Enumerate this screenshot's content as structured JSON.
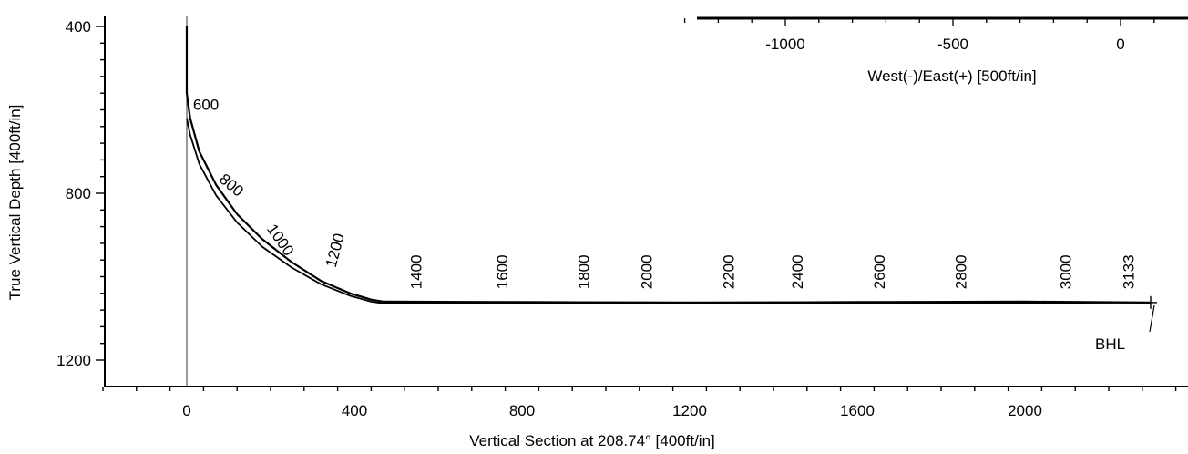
{
  "chart_data": {
    "type": "line",
    "title": "",
    "xlabel": "Vertical Section at 208.74° [400ft/in]",
    "ylabel": "True Vertical Depth [400ft/in]",
    "xlim": [
      -200,
      2380
    ],
    "ylim": [
      400,
      1240
    ],
    "y_inverted": true,
    "grid": false,
    "x_ticks": [
      0,
      400,
      800,
      1200,
      1600,
      2000
    ],
    "y_ticks": [
      400,
      800,
      1200
    ],
    "series": [
      {
        "points": [
          [
            0,
            400
          ],
          [
            0,
            560
          ],
          [
            8,
            620
          ],
          [
            30,
            700
          ],
          [
            70,
            780
          ],
          [
            120,
            850
          ],
          [
            180,
            910
          ],
          [
            250,
            965
          ],
          [
            320,
            1010
          ],
          [
            390,
            1040
          ],
          [
            440,
            1055
          ],
          [
            470,
            1060
          ],
          [
            800,
            1061
          ],
          [
            1200,
            1062
          ],
          [
            1600,
            1061
          ],
          [
            2000,
            1060
          ],
          [
            2300,
            1062
          ]
        ]
      },
      {
        "points": [
          [
            0,
            620
          ],
          [
            8,
            660
          ],
          [
            30,
            730
          ],
          [
            70,
            805
          ],
          [
            120,
            870
          ],
          [
            180,
            928
          ],
          [
            250,
            978
          ],
          [
            320,
            1018
          ],
          [
            390,
            1046
          ],
          [
            440,
            1060
          ],
          [
            470,
            1064
          ],
          [
            800,
            1064
          ],
          [
            1200,
            1064
          ],
          [
            1600,
            1063
          ],
          [
            2000,
            1063
          ],
          [
            2300,
            1062
          ]
        ]
      }
    ],
    "md_labels": [
      {
        "text": "600",
        "x": 15,
        "y": 600,
        "angle": 0
      },
      {
        "text": "800",
        "x": 75,
        "y": 770,
        "angle": 40
      },
      {
        "text": "1000",
        "x": 190,
        "y": 885,
        "angle": 55
      },
      {
        "text": "1200",
        "x": 355,
        "y": 980,
        "angle": -75
      },
      {
        "text": "1400",
        "x": 560,
        "y": 1030,
        "angle": -90
      },
      {
        "text": "1600",
        "x": 765,
        "y": 1030,
        "angle": -90
      },
      {
        "text": "1800",
        "x": 960,
        "y": 1030,
        "angle": -90
      },
      {
        "text": "2000",
        "x": 1110,
        "y": 1030,
        "angle": -90
      },
      {
        "text": "2200",
        "x": 1305,
        "y": 1030,
        "angle": -90
      },
      {
        "text": "2400",
        "x": 1470,
        "y": 1030,
        "angle": -90
      },
      {
        "text": "2600",
        "x": 1665,
        "y": 1030,
        "angle": -90
      },
      {
        "text": "2800",
        "x": 1860,
        "y": 1030,
        "angle": -90
      },
      {
        "text": "3000",
        "x": 2110,
        "y": 1030,
        "angle": -90
      },
      {
        "text": "3133",
        "x": 2260,
        "y": 1030,
        "angle": -90
      }
    ],
    "endpoint": {
      "x": 2300,
      "y": 1062
    },
    "annotation": {
      "text": "BHL"
    },
    "secondary_axis": {
      "label": "West(-)/East(+) [500ft/in]",
      "ticks": [
        -1000,
        -500,
        0
      ],
      "range": [
        -1335,
        140
      ]
    }
  }
}
